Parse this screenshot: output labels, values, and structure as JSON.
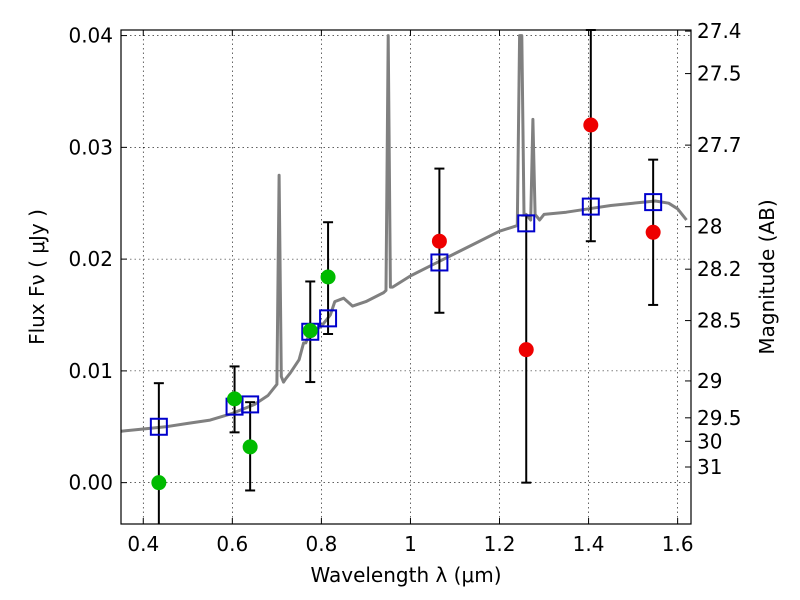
{
  "chart_data": {
    "type": "scatter",
    "title": "",
    "xlabel": "Wavelength  λ (μm)",
    "ylabel": "Flux  Fν  ( μJy )",
    "ylabel_right": "Magnitude (AB)",
    "xlim": [
      0.35,
      1.63
    ],
    "ylim": [
      -0.0037,
      0.0405
    ],
    "x_ticks": [
      0.4,
      0.6,
      0.8,
      1.0,
      1.2,
      1.4,
      1.6
    ],
    "x_tick_labels": [
      "0.4",
      "0.6",
      "0.8",
      "1",
      "1.2",
      "1.4",
      "1.6"
    ],
    "y_ticks": [
      0.0,
      0.01,
      0.02,
      0.03,
      0.04
    ],
    "y_tick_labels": [
      "0.00",
      "0.01",
      "0.02",
      "0.03",
      "0.04"
    ],
    "right_ticks": [
      {
        "label": "27.4",
        "flux": 0.0404
      },
      {
        "label": "27.5",
        "flux": 0.0366
      },
      {
        "label": "27.7",
        "flux": 0.0302
      },
      {
        "label": "28",
        "flux": 0.0229
      },
      {
        "label": "28.2",
        "flux": 0.0191
      },
      {
        "label": "28.5",
        "flux": 0.0145
      },
      {
        "label": "29",
        "flux": 0.0091
      },
      {
        "label": "29.5",
        "flux": 0.0058
      },
      {
        "label": "30",
        "flux": 0.0037
      },
      {
        "label": "31",
        "flux": 0.0014
      }
    ],
    "grid": true,
    "colors": {
      "model": "#808080",
      "box": "#0000cc",
      "green": "#00bb00",
      "red": "#ee0000",
      "error": "#000000"
    },
    "model_spectrum": {
      "x": [
        0.35,
        0.4,
        0.45,
        0.5,
        0.55,
        0.6,
        0.65,
        0.68,
        0.7,
        0.705,
        0.71,
        0.715,
        0.72,
        0.73,
        0.75,
        0.76,
        0.765,
        0.77,
        0.78,
        0.8,
        0.82,
        0.83,
        0.85,
        0.87,
        0.9,
        0.94,
        0.945,
        0.95,
        0.955,
        0.96,
        1.0,
        1.05,
        1.1,
        1.15,
        1.2,
        1.24,
        1.245,
        1.25,
        1.255,
        1.26,
        1.27,
        1.275,
        1.28,
        1.29,
        1.3,
        1.35,
        1.4,
        1.45,
        1.5,
        1.55,
        1.58,
        1.6,
        1.62
      ],
      "y": [
        0.0046,
        0.0048,
        0.005,
        0.0053,
        0.0056,
        0.0062,
        0.007,
        0.0078,
        0.0088,
        0.0275,
        0.0095,
        0.009,
        0.0093,
        0.0098,
        0.011,
        0.0125,
        0.0125,
        0.013,
        0.0135,
        0.014,
        0.015,
        0.0162,
        0.0165,
        0.0158,
        0.0162,
        0.017,
        0.0172,
        0.04,
        0.0175,
        0.0175,
        0.0185,
        0.0195,
        0.0205,
        0.0215,
        0.0225,
        0.023,
        0.04,
        0.04,
        0.024,
        0.024,
        0.0235,
        0.0325,
        0.024,
        0.0235,
        0.024,
        0.0242,
        0.0245,
        0.0248,
        0.025,
        0.0252,
        0.025,
        0.0245,
        0.0235
      ]
    },
    "box_points": [
      {
        "x": 0.435,
        "y": 0.005
      },
      {
        "x": 0.605,
        "y": 0.0068
      },
      {
        "x": 0.64,
        "y": 0.007
      },
      {
        "x": 0.775,
        "y": 0.0135
      },
      {
        "x": 0.815,
        "y": 0.0147
      },
      {
        "x": 1.065,
        "y": 0.0197
      },
      {
        "x": 1.26,
        "y": 0.0232
      },
      {
        "x": 1.405,
        "y": 0.0247
      },
      {
        "x": 1.545,
        "y": 0.0251
      }
    ],
    "green_points": [
      {
        "x": 0.435,
        "y": 0.0
      },
      {
        "x": 0.605,
        "y": 0.0075
      },
      {
        "x": 0.64,
        "y": 0.0032
      },
      {
        "x": 0.775,
        "y": 0.0136
      },
      {
        "x": 0.815,
        "y": 0.0184
      }
    ],
    "red_points": [
      {
        "x": 1.065,
        "y": 0.0216
      },
      {
        "x": 1.26,
        "y": 0.0119
      },
      {
        "x": 1.405,
        "y": 0.032
      },
      {
        "x": 1.545,
        "y": 0.0224
      }
    ],
    "error_bars": [
      {
        "x": 0.435,
        "low": -0.004,
        "high": 0.0089
      },
      {
        "x": 0.605,
        "low": 0.0045,
        "high": 0.0104
      },
      {
        "x": 0.64,
        "low": -0.0007,
        "high": 0.0072
      },
      {
        "x": 0.775,
        "low": 0.009,
        "high": 0.018
      },
      {
        "x": 0.815,
        "low": 0.0133,
        "high": 0.0233
      },
      {
        "x": 1.065,
        "low": 0.0152,
        "high": 0.0281
      },
      {
        "x": 1.26,
        "low": 0.0,
        "high": 0.0239
      },
      {
        "x": 1.405,
        "low": 0.0216,
        "high": 0.0405
      },
      {
        "x": 1.545,
        "low": 0.0159,
        "high": 0.0289
      }
    ]
  }
}
